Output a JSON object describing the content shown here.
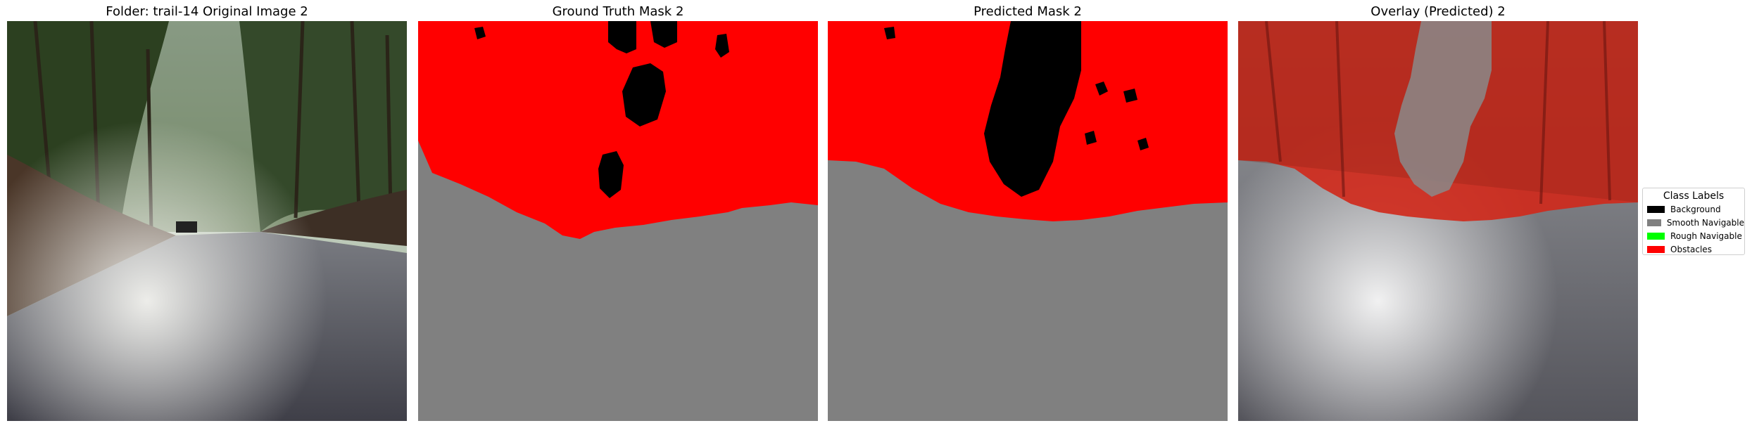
{
  "panels": [
    {
      "title": "Folder: trail-14 Original Image 2"
    },
    {
      "title": "Ground Truth Mask 2"
    },
    {
      "title": "Predicted Mask 2"
    },
    {
      "title": "Overlay (Predicted) 2"
    }
  ],
  "legend": {
    "title": "Class Labels",
    "items": [
      {
        "label": "Background",
        "color": "#000000"
      },
      {
        "label": "Smooth Navigable",
        "color": "#808080"
      },
      {
        "label": "Rough Navigable",
        "color": "#00ff00"
      },
      {
        "label": "Obstacles",
        "color": "#ff0000"
      }
    ]
  }
}
